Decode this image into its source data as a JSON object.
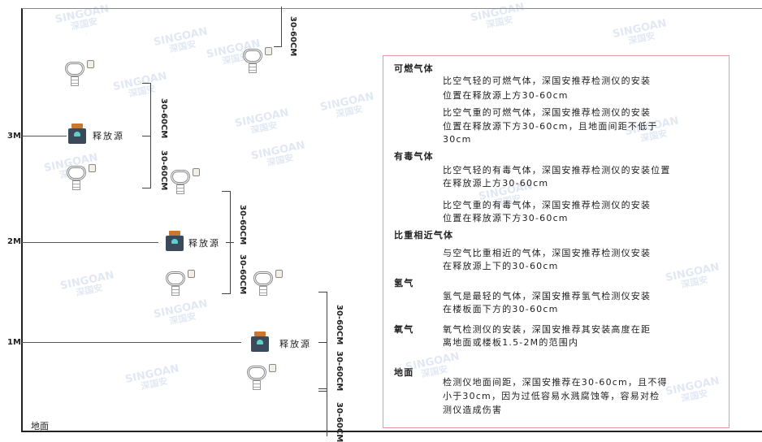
{
  "watermark": {
    "brand": "SINGOAN",
    "cn": "深国安"
  },
  "levels": {
    "l3": "3M",
    "l2": "2M",
    "l1": "1M",
    "ground": "地面"
  },
  "source_label": "释放源",
  "dimension_label": "30-60CM",
  "legend": {
    "combustible": {
      "title": "可燃气体",
      "light1": "比空气轻的可燃气体，深国安推荐检测仪的安装",
      "light2": "位置在释放源上方30-60cm",
      "heavy1": "比空气重的可燃气体，深国安推荐检测仪的安装",
      "heavy2": "位置在释放源下方30-60cm，且地面间距不低于",
      "heavy3": "30cm"
    },
    "toxic": {
      "title": "有毒气体",
      "light1": "比空气轻的有毒气体，深国安推荐检测仪的安装位置",
      "light2": "在释放源上方30-60cm",
      "heavy1": "比空气重的有毒气体，深国安推荐检测仪的安装",
      "heavy2": "位置在释放源下方30-60cm"
    },
    "similar": {
      "title": "比重相近气体",
      "l1": "与空气比重相近的气体，深国安推荐检测仪安装",
      "l2": "在释放源上下的30-60cm"
    },
    "hydrogen": {
      "title": "氢气",
      "l1": "氢气是最轻的气体，深国安推荐氢气检测仪安装",
      "l2": "在楼板面下方的30-60cm"
    },
    "oxygen": {
      "title": "氧气",
      "l1": "氧气检测仪的安装，深国安推荐其安装高度在距",
      "l2": "离地面或楼板1.5-2M的范围内"
    },
    "ground": {
      "title": "地面",
      "l1": "检测仪地面间距，深国安推荐在30-60cm，且不得",
      "l2": "小于30cm，因为过低容易水溅腐蚀等，容易对检",
      "l3": "测仪造成伤害"
    }
  },
  "colors": {
    "border": "#e89a9a",
    "source_body": "#3b4a5a",
    "source_cap": "#c9782d"
  }
}
